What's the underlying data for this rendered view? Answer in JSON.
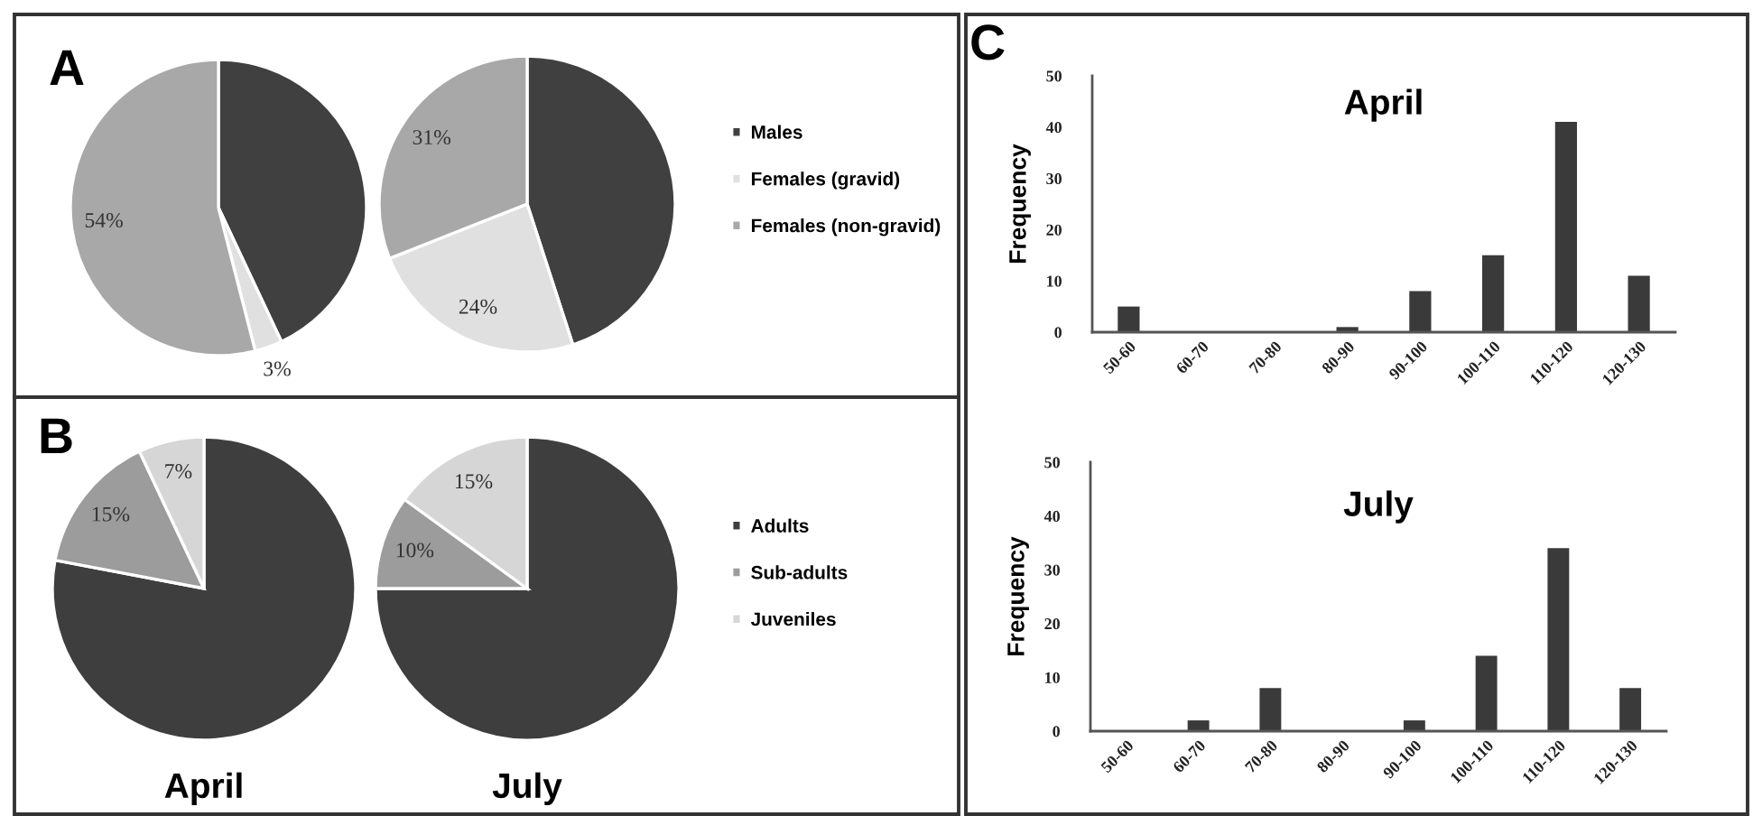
{
  "chart_data": [
    {
      "type": "pie",
      "categories": [
        "Males",
        "Females (gravid)",
        "Females (non-gravid)"
      ],
      "values": [
        43,
        3,
        54
      ],
      "colors": [
        "#404040",
        "#e0e0e0",
        "#a8a8a8"
      ],
      "value_labels": [
        null,
        "3%",
        "54%"
      ],
      "legend": "right",
      "annotations": [
        "A"
      ]
    },
    {
      "type": "pie",
      "categories": [
        null,
        null,
        null
      ],
      "values": [
        45,
        24,
        31
      ],
      "colors": [
        "#404040",
        "#e0e0e0",
        "#a8a8a8"
      ],
      "value_labels": [
        null,
        "24%",
        "31%"
      ]
    },
    {
      "type": "pie",
      "title": "April",
      "categories": [
        "Adults",
        "Sub-adults",
        "Juveniles"
      ],
      "values": [
        78,
        15,
        7
      ],
      "colors": [
        "#3e3e3e",
        "#9c9c9c",
        "#d6d6d6"
      ],
      "value_labels": [
        null,
        "15%",
        "7%"
      ],
      "legend": "right",
      "annotations": [
        "B"
      ]
    },
    {
      "type": "pie",
      "title": "July",
      "categories": [
        null,
        null,
        null
      ],
      "values": [
        75,
        10,
        15
      ],
      "colors": [
        "#3e3e3e",
        "#9c9c9c",
        "#d6d6d6"
      ],
      "value_labels": [
        null,
        "10%",
        "15%"
      ]
    },
    {
      "type": "bar",
      "title": "April",
      "ylabel": "Frequency",
      "categories": [
        "50-60",
        "60-70",
        "70-80",
        "80-90",
        "90-100",
        "100-110",
        "110-120",
        "120-130"
      ],
      "values": [
        5,
        0,
        0,
        1,
        8,
        15,
        41,
        11
      ],
      "color": "#3a3a3a",
      "ylim": [
        0,
        50
      ],
      "yticks": [
        0,
        10,
        20,
        30,
        40,
        50
      ],
      "annotations": [
        "C"
      ]
    },
    {
      "type": "bar",
      "title": "July",
      "ylabel": "Frequency",
      "categories": [
        "50-60",
        "60-70",
        "70-80",
        "80-90",
        "90-100",
        "100-110",
        "110-120",
        "120-130"
      ],
      "values": [
        0,
        2,
        8,
        0,
        2,
        14,
        34,
        8
      ],
      "color": "#3a3a3a",
      "ylim": [
        0,
        50
      ],
      "yticks": [
        0,
        10,
        20,
        30,
        40,
        50
      ]
    }
  ]
}
